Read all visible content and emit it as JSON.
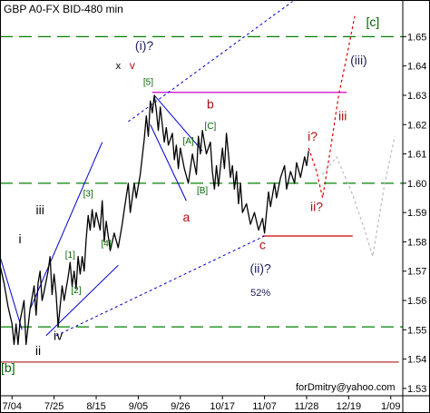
{
  "chart_data": {
    "type": "line",
    "title": "GBP A0-FX BID-480 min",
    "watermark": "forDmitry@yahoo.com",
    "x_ticks": [
      {
        "label": "7/04",
        "day": 0
      },
      {
        "label": "7/25",
        "day": 21
      },
      {
        "label": "8/15",
        "day": 42
      },
      {
        "label": "9/05",
        "day": 63
      },
      {
        "label": "9/26",
        "day": 84
      },
      {
        "label": "10/17",
        "day": 105
      },
      {
        "label": "11/07",
        "day": 126
      },
      {
        "label": "11/28",
        "day": 147
      },
      {
        "label": "12/19",
        "day": 168
      },
      {
        "label": "1/09",
        "day": 189
      }
    ],
    "xlim": [
      -6,
      195
    ],
    "y_ticks": [
      "1.53",
      "1.54",
      "1.55",
      "1.56",
      "1.57",
      "1.58",
      "1.59",
      "1.60",
      "1.61",
      "1.62",
      "1.63",
      "1.64",
      "1.65"
    ],
    "ylim": [
      1.5275,
      1.6625
    ],
    "price_series": [
      [
        -6,
        1.572
      ],
      [
        -4,
        1.566
      ],
      [
        -2,
        1.558
      ],
      [
        0,
        1.552
      ],
      [
        1,
        1.545
      ],
      [
        2,
        1.552
      ],
      [
        3,
        1.545
      ],
      [
        4,
        1.553
      ],
      [
        6,
        1.56
      ],
      [
        7,
        1.545
      ],
      [
        9,
        1.557
      ],
      [
        11,
        1.565
      ],
      [
        12,
        1.555
      ],
      [
        13,
        1.566
      ],
      [
        14,
        1.57
      ],
      [
        15,
        1.56
      ],
      [
        16,
        1.563
      ],
      [
        18,
        1.57
      ],
      [
        19,
        1.575
      ],
      [
        20,
        1.562
      ],
      [
        21,
        1.569
      ],
      [
        22,
        1.562
      ],
      [
        23,
        1.551
      ],
      [
        24,
        1.558
      ],
      [
        25,
        1.565
      ],
      [
        26,
        1.56
      ],
      [
        28,
        1.568
      ],
      [
        29,
        1.573
      ],
      [
        30,
        1.565
      ],
      [
        31,
        1.57
      ],
      [
        32,
        1.564
      ],
      [
        33,
        1.575
      ],
      [
        34,
        1.569
      ],
      [
        35,
        1.575
      ],
      [
        36,
        1.57
      ],
      [
        37,
        1.581
      ],
      [
        38,
        1.589
      ],
      [
        39,
        1.584
      ],
      [
        40,
        1.591
      ],
      [
        41,
        1.585
      ],
      [
        42,
        1.59
      ],
      [
        44,
        1.584
      ],
      [
        45,
        1.594
      ],
      [
        46,
        1.58
      ],
      [
        47,
        1.587
      ],
      [
        49,
        1.577
      ],
      [
        51,
        1.583
      ],
      [
        53,
        1.578
      ],
      [
        55,
        1.586
      ],
      [
        56,
        1.591
      ],
      [
        58,
        1.6
      ],
      [
        59,
        1.59
      ],
      [
        61,
        1.6
      ],
      [
        62,
        1.595
      ],
      [
        64,
        1.603
      ],
      [
        66,
        1.615
      ],
      [
        67,
        1.623
      ],
      [
        68,
        1.616
      ],
      [
        69,
        1.628
      ],
      [
        70,
        1.624
      ],
      [
        71,
        1.63
      ],
      [
        72,
        1.625
      ],
      [
        73,
        1.618
      ],
      [
        74,
        1.626
      ],
      [
        75,
        1.62
      ],
      [
        76,
        1.614
      ],
      [
        77,
        1.619
      ],
      [
        78,
        1.613
      ],
      [
        80,
        1.617
      ],
      [
        81,
        1.608
      ],
      [
        82,
        1.613
      ],
      [
        83,
        1.605
      ],
      [
        84,
        1.612
      ],
      [
        86,
        1.605
      ],
      [
        88,
        1.6
      ],
      [
        90,
        1.61
      ],
      [
        92,
        1.603
      ],
      [
        93,
        1.616
      ],
      [
        94,
        1.61
      ],
      [
        95,
        1.618
      ],
      [
        97,
        1.61
      ],
      [
        99,
        1.614
      ],
      [
        100,
        1.604
      ],
      [
        101,
        1.598
      ],
      [
        102,
        1.606
      ],
      [
        103,
        1.599
      ],
      [
        105,
        1.612
      ],
      [
        106,
        1.605
      ],
      [
        107,
        1.617
      ],
      [
        108,
        1.61
      ],
      [
        109,
        1.602
      ],
      [
        110,
        1.606
      ],
      [
        111,
        1.598
      ],
      [
        112,
        1.604
      ],
      [
        113,
        1.593
      ],
      [
        114,
        1.6
      ],
      [
        115,
        1.59
      ],
      [
        117,
        1.593
      ],
      [
        119,
        1.586
      ],
      [
        121,
        1.59
      ],
      [
        123,
        1.584
      ],
      [
        125,
        1.588
      ],
      [
        126,
        1.583
      ],
      [
        127,
        1.59
      ],
      [
        128,
        1.597
      ],
      [
        129,
        1.592
      ],
      [
        131,
        1.6
      ],
      [
        132,
        1.595
      ],
      [
        134,
        1.602
      ],
      [
        136,
        1.606
      ],
      [
        137,
        1.598
      ],
      [
        139,
        1.604
      ],
      [
        141,
        1.6
      ],
      [
        142,
        1.607
      ],
      [
        144,
        1.602
      ],
      [
        146,
        1.609
      ],
      [
        147,
        1.606
      ],
      [
        148,
        1.611
      ]
    ],
    "horizontal_levels": [
      {
        "y": 1.65,
        "style": "dashed",
        "color": "#008000"
      },
      {
        "y": 1.6,
        "style": "dashed",
        "color": "#008000"
      },
      {
        "y": 1.551,
        "style": "dashed",
        "color": "#008000"
      },
      {
        "y": 1.539,
        "style": "solid",
        "color": "#b03030",
        "x0": -6,
        "x1": 193
      },
      {
        "y": 1.631,
        "style": "solid",
        "color": "#cc00cc",
        "x0": 70,
        "x1": 167
      },
      {
        "y": 1.582,
        "style": "solid",
        "color": "#cc0000",
        "x0": 125,
        "x1": 170
      }
    ],
    "trend_lines": [
      {
        "color": "#0000cc",
        "dash": false,
        "points": [
          [
            -6,
            1.575
          ],
          [
            5,
            1.55
          ]
        ]
      },
      {
        "color": "#0000cc",
        "dash": false,
        "points": [
          [
            9,
            1.557
          ],
          [
            45,
            1.614
          ]
        ]
      },
      {
        "color": "#0000cc",
        "dash": false,
        "points": [
          [
            17,
            1.548
          ],
          [
            53,
            1.572
          ]
        ]
      },
      {
        "color": "#0000cc",
        "dash": false,
        "points": [
          [
            71,
            1.63
          ],
          [
            95,
            1.611
          ]
        ]
      },
      {
        "color": "#0000cc",
        "dash": false,
        "points": [
          [
            69,
            1.62
          ],
          [
            87,
            1.594
          ]
        ]
      },
      {
        "color": "#0000cc",
        "dash": true,
        "points": [
          [
            58,
            1.621
          ],
          [
            140,
            1.662
          ]
        ]
      },
      {
        "color": "#0000cc",
        "dash": true,
        "points": [
          [
            22,
            1.548
          ],
          [
            126,
            1.582
          ]
        ]
      }
    ],
    "projections": [
      {
        "color": "#dd0000",
        "points": [
          [
            148,
            1.612
          ],
          [
            152,
            1.604
          ],
          [
            155,
            1.595
          ],
          [
            159,
            1.612
          ],
          [
            163,
            1.63
          ],
          [
            167,
            1.643
          ],
          [
            171,
            1.657
          ]
        ]
      },
      {
        "color": "#bbbbbb",
        "points": [
          [
            155,
            1.603
          ],
          [
            162,
            1.609
          ],
          [
            170,
            1.596
          ],
          [
            176,
            1.584
          ],
          [
            180,
            1.575
          ],
          [
            186,
            1.6
          ],
          [
            191,
            1.616
          ]
        ]
      }
    ],
    "wave_labels": [
      {
        "text": "[c]",
        "x": 180,
        "y": 1.6535,
        "color": "#006600",
        "size": 14
      },
      {
        "text": "(i)?",
        "x": 66,
        "y": 1.6455,
        "color": "#202060",
        "size": 14
      },
      {
        "text": "x",
        "x": 53,
        "y": 1.639,
        "color": "#000000",
        "size": 11
      },
      {
        "text": "v",
        "x": 60,
        "y": 1.639,
        "color": "#aa1111",
        "size": 12
      },
      {
        "text": "[5]",
        "x": 68,
        "y": 1.6335,
        "color": "#006600",
        "size": 10
      },
      {
        "text": "b",
        "x": 99,
        "y": 1.6255,
        "color": "#aa1111",
        "size": 14
      },
      {
        "text": "[C]",
        "x": 99,
        "y": 1.6185,
        "color": "#006600",
        "size": 10
      },
      {
        "text": "[A]",
        "x": 88,
        "y": 1.6135,
        "color": "#006600",
        "size": 10
      },
      {
        "text": "i?",
        "x": 150,
        "y": 1.6145,
        "color": "#aa1111",
        "size": 14
      },
      {
        "text": "(iii)",
        "x": 173,
        "y": 1.6405,
        "color": "#202060",
        "size": 14
      },
      {
        "text": "iii",
        "x": 165,
        "y": 1.6215,
        "color": "#aa1111",
        "size": 14
      },
      {
        "text": "[B]",
        "x": 95,
        "y": 1.5965,
        "color": "#006600",
        "size": 10
      },
      {
        "text": "a",
        "x": 87,
        "y": 1.587,
        "color": "#aa1111",
        "size": 14
      },
      {
        "text": "ii?",
        "x": 152,
        "y": 1.5905,
        "color": "#aa1111",
        "size": 14
      },
      {
        "text": "c",
        "x": 125,
        "y": 1.5775,
        "color": "#aa1111",
        "size": 14
      },
      {
        "text": "(ii)?",
        "x": 124,
        "y": 1.5695,
        "color": "#202060",
        "size": 14
      },
      {
        "text": "52%",
        "x": 124,
        "y": 1.5615,
        "color": "#202060",
        "size": 11
      },
      {
        "text": "iii",
        "x": 14,
        "y": 1.5895,
        "color": "#000000",
        "size": 14
      },
      {
        "text": "[3]",
        "x": 38,
        "y": 1.5955,
        "color": "#006600",
        "size": 10
      },
      {
        "text": "i",
        "x": 4,
        "y": 1.5795,
        "color": "#000000",
        "size": 14
      },
      {
        "text": "[4]",
        "x": 47,
        "y": 1.5785,
        "color": "#006600",
        "size": 10
      },
      {
        "text": "[1]",
        "x": 29,
        "y": 1.5745,
        "color": "#006600",
        "size": 10
      },
      {
        "text": "[2]",
        "x": 32,
        "y": 1.5625,
        "color": "#006600",
        "size": 10
      },
      {
        "text": "iv",
        "x": 23,
        "y": 1.5465,
        "color": "#000000",
        "size": 14
      },
      {
        "text": "ii",
        "x": 13,
        "y": 1.5415,
        "color": "#000000",
        "size": 14
      },
      {
        "text": "[b]",
        "x": -2,
        "y": 1.5355,
        "color": "#006600",
        "size": 14
      }
    ]
  }
}
